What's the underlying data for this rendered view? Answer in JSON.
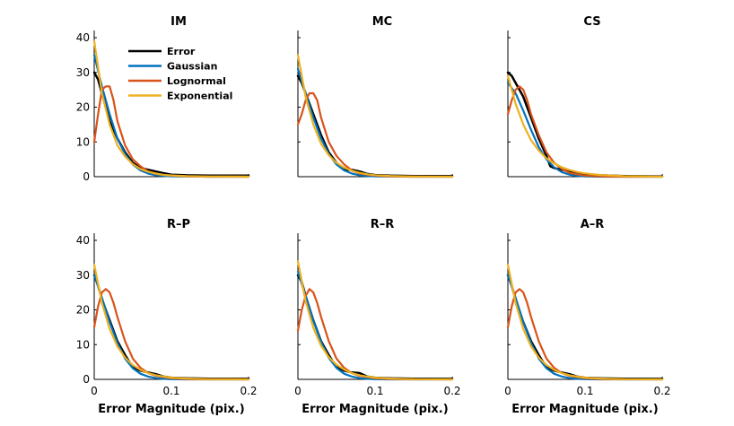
{
  "chart_data": {
    "type": "line",
    "layout": "2x3 small multiples",
    "legend": {
      "placement": "top-right of first panel",
      "entries": [
        {
          "name": "Error",
          "color": "#000000"
        },
        {
          "name": "Gaussian",
          "color": "#0072BD"
        },
        {
          "name": "Lognormal",
          "color": "#D95319"
        },
        {
          "name": "Exponential",
          "color": "#EDB120"
        }
      ]
    },
    "xlabel": "Error Magnitude (pix.)",
    "ylabel": "",
    "xlim": [
      0,
      0.2
    ],
    "ylim": [
      0,
      40
    ],
    "xticks": [
      "0",
      "0.1",
      "0.2"
    ],
    "yticks": [
      "0",
      "10",
      "20",
      "30",
      "40"
    ],
    "grid": false,
    "panels": [
      {
        "title": "IM",
        "series": [
          {
            "name": "Error",
            "x": [
              0,
              0.005,
              0.01,
              0.02,
              0.03,
              0.04,
              0.05,
              0.06,
              0.07,
              0.08,
              0.09,
              0.1,
              0.12,
              0.15,
              0.2
            ],
            "y": [
              30,
              28,
              24,
              16,
              11,
              7,
              4,
              2.5,
              2,
              1.5,
              1,
              0.6,
              0.4,
              0.3,
              0.3
            ]
          },
          {
            "name": "Gaussian",
            "x": [
              0,
              0.01,
              0.02,
              0.03,
              0.04,
              0.05,
              0.06,
              0.07,
              0.08,
              0.09,
              0.1,
              0.12,
              0.15,
              0.2
            ],
            "y": [
              35,
              26,
              18,
              11,
              6.5,
              3.5,
              1.8,
              0.9,
              0.4,
              0.2,
              0.1,
              0.05,
              0,
              0
            ]
          },
          {
            "name": "Lognormal",
            "x": [
              0,
              0.005,
              0.01,
              0.015,
              0.02,
              0.025,
              0.03,
              0.04,
              0.05,
              0.06,
              0.07,
              0.08,
              0.1,
              0.12,
              0.15,
              0.2
            ],
            "y": [
              10,
              18,
              25,
              26,
              26,
              22,
              16,
              9,
              5,
              3,
              1.5,
              0.8,
              0.3,
              0.1,
              0,
              0
            ]
          },
          {
            "name": "Exponential",
            "x": [
              0,
              0.01,
              0.02,
              0.03,
              0.04,
              0.05,
              0.06,
              0.07,
              0.08,
              0.09,
              0.1,
              0.12,
              0.15,
              0.2
            ],
            "y": [
              39,
              24,
              15,
              9,
              5.8,
              3.6,
              2.2,
              1.4,
              0.9,
              0.5,
              0.35,
              0.15,
              0.05,
              0
            ]
          }
        ]
      },
      {
        "title": "MC",
        "series": [
          {
            "name": "Error",
            "x": [
              0,
              0.005,
              0.01,
              0.02,
              0.03,
              0.04,
              0.05,
              0.06,
              0.07,
              0.08,
              0.09,
              0.1,
              0.12,
              0.15,
              0.2
            ],
            "y": [
              29,
              27,
              24,
              18,
              12,
              7,
              4,
              2,
              2,
              1.5,
              0.8,
              0.5,
              0.3,
              0.2,
              0.2
            ]
          },
          {
            "name": "Gaussian",
            "x": [
              0,
              0.01,
              0.02,
              0.03,
              0.04,
              0.05,
              0.06,
              0.07,
              0.08,
              0.09,
              0.1,
              0.12,
              0.15,
              0.2
            ],
            "y": [
              31,
              24,
              17,
              11,
              6.5,
              3.5,
              1.8,
              0.9,
              0.4,
              0.2,
              0.1,
              0.05,
              0,
              0
            ]
          },
          {
            "name": "Lognormal",
            "x": [
              0,
              0.005,
              0.01,
              0.015,
              0.02,
              0.025,
              0.03,
              0.04,
              0.05,
              0.06,
              0.07,
              0.08,
              0.1,
              0.12,
              0.15,
              0.2
            ],
            "y": [
              15,
              18,
              22,
              24,
              24,
              22,
              17,
              10,
              6,
              3.5,
              1.8,
              0.9,
              0.3,
              0.1,
              0,
              0
            ]
          },
          {
            "name": "Exponential",
            "x": [
              0,
              0.01,
              0.02,
              0.03,
              0.04,
              0.05,
              0.06,
              0.07,
              0.08,
              0.09,
              0.1,
              0.12,
              0.15,
              0.2
            ],
            "y": [
              35,
              23,
              15,
              9.5,
              6.2,
              4,
              2.6,
              1.7,
              1.1,
              0.7,
              0.45,
              0.2,
              0.05,
              0
            ]
          }
        ]
      },
      {
        "title": "CS",
        "series": [
          {
            "name": "Error",
            "x": [
              0,
              0.005,
              0.01,
              0.02,
              0.03,
              0.04,
              0.05,
              0.055,
              0.06,
              0.07,
              0.08,
              0.1,
              0.12,
              0.15,
              0.2
            ],
            "y": [
              30,
              29,
              27,
              23,
              17,
              11,
              6,
              3,
              2.5,
              2,
              1.5,
              0.7,
              0.4,
              0.2,
              0.1
            ]
          },
          {
            "name": "Gaussian",
            "x": [
              0,
              0.01,
              0.02,
              0.03,
              0.04,
              0.05,
              0.06,
              0.07,
              0.08,
              0.09,
              0.1,
              0.12,
              0.15,
              0.2
            ],
            "y": [
              27,
              24,
              19,
              13.5,
              8.5,
              5,
              2.7,
              1.3,
              0.6,
              0.25,
              0.1,
              0,
              0,
              0
            ]
          },
          {
            "name": "Lognormal",
            "x": [
              0,
              0.005,
              0.01,
              0.015,
              0.02,
              0.025,
              0.03,
              0.04,
              0.05,
              0.06,
              0.07,
              0.08,
              0.1,
              0.12,
              0.15,
              0.2
            ],
            "y": [
              18,
              22,
              25,
              26,
              25,
              22,
              18,
              12,
              7,
              4,
              2.2,
              1.1,
              0.3,
              0.1,
              0,
              0
            ]
          },
          {
            "name": "Exponential",
            "x": [
              0,
              0.01,
              0.02,
              0.03,
              0.04,
              0.05,
              0.06,
              0.07,
              0.08,
              0.09,
              0.1,
              0.12,
              0.15,
              0.2
            ],
            "y": [
              29,
              21,
              15,
              10.5,
              7.5,
              5.3,
              3.8,
              2.7,
              1.9,
              1.35,
              0.95,
              0.5,
              0.15,
              0
            ]
          }
        ]
      },
      {
        "title": "R–P",
        "series": [
          {
            "name": "Error",
            "x": [
              0,
              0.005,
              0.01,
              0.02,
              0.03,
              0.04,
              0.05,
              0.06,
              0.07,
              0.08,
              0.09,
              0.1,
              0.12,
              0.15,
              0.2
            ],
            "y": [
              30,
              27,
              23,
              17,
              11,
              7,
              3.5,
              2.5,
              2,
              1.5,
              0.8,
              0.5,
              0.3,
              0.2,
              0.2
            ]
          },
          {
            "name": "Gaussian",
            "x": [
              0,
              0.01,
              0.02,
              0.03,
              0.04,
              0.05,
              0.06,
              0.07,
              0.08,
              0.09,
              0.1,
              0.12,
              0.15,
              0.2
            ],
            "y": [
              30,
              23.5,
              16.5,
              10.5,
              6,
              3.2,
              1.6,
              0.8,
              0.35,
              0.15,
              0.06,
              0,
              0,
              0
            ]
          },
          {
            "name": "Lognormal",
            "x": [
              0,
              0.005,
              0.01,
              0.015,
              0.02,
              0.025,
              0.03,
              0.04,
              0.05,
              0.06,
              0.07,
              0.08,
              0.1,
              0.12,
              0.15,
              0.2
            ],
            "y": [
              15,
              21,
              25,
              26,
              25,
              22,
              18,
              11,
              6,
              3.3,
              1.8,
              1,
              0.3,
              0.1,
              0,
              0
            ]
          },
          {
            "name": "Exponential",
            "x": [
              0,
              0.01,
              0.02,
              0.03,
              0.04,
              0.05,
              0.06,
              0.07,
              0.08,
              0.09,
              0.1,
              0.12,
              0.15,
              0.2
            ],
            "y": [
              33,
              22,
              14.5,
              9.5,
              6.3,
              4.1,
              2.7,
              1.8,
              1.2,
              0.8,
              0.5,
              0.22,
              0.06,
              0
            ]
          }
        ]
      },
      {
        "title": "R–R",
        "series": [
          {
            "name": "Error",
            "x": [
              0,
              0.005,
              0.01,
              0.02,
              0.03,
              0.04,
              0.05,
              0.06,
              0.07,
              0.08,
              0.09,
              0.1,
              0.12,
              0.15,
              0.2
            ],
            "y": [
              30,
              28,
              24,
              17,
              11,
              7,
              3.5,
              2.5,
              2,
              1.8,
              0.8,
              0.5,
              0.3,
              0.2,
              0.2
            ]
          },
          {
            "name": "Gaussian",
            "x": [
              0,
              0.01,
              0.02,
              0.03,
              0.04,
              0.05,
              0.06,
              0.07,
              0.08,
              0.09,
              0.1,
              0.12,
              0.15,
              0.2
            ],
            "y": [
              31,
              24,
              17,
              10.8,
              6.2,
              3.3,
              1.6,
              0.8,
              0.35,
              0.15,
              0.06,
              0,
              0,
              0
            ]
          },
          {
            "name": "Lognormal",
            "x": [
              0,
              0.005,
              0.01,
              0.015,
              0.02,
              0.025,
              0.03,
              0.04,
              0.05,
              0.06,
              0.07,
              0.08,
              0.1,
              0.12,
              0.15,
              0.2
            ],
            "y": [
              14,
              20,
              24,
              26,
              25,
              22,
              18,
              11,
              6,
              3.3,
              1.8,
              1,
              0.3,
              0.1,
              0,
              0
            ]
          },
          {
            "name": "Exponential",
            "x": [
              0,
              0.01,
              0.02,
              0.03,
              0.04,
              0.05,
              0.06,
              0.07,
              0.08,
              0.09,
              0.1,
              0.12,
              0.15,
              0.2
            ],
            "y": [
              34,
              22.5,
              14.8,
              9.7,
              6.4,
              4.2,
              2.8,
              1.8,
              1.2,
              0.8,
              0.5,
              0.22,
              0.06,
              0
            ]
          }
        ]
      },
      {
        "title": "A–R",
        "series": [
          {
            "name": "Error",
            "x": [
              0,
              0.005,
              0.01,
              0.02,
              0.03,
              0.04,
              0.05,
              0.06,
              0.07,
              0.08,
              0.09,
              0.1,
              0.12,
              0.15,
              0.2
            ],
            "y": [
              30,
              27,
              23,
              16.5,
              11,
              7,
              3.5,
              2.5,
              2,
              1.5,
              0.8,
              0.5,
              0.3,
              0.2,
              0.2
            ]
          },
          {
            "name": "Gaussian",
            "x": [
              0,
              0.01,
              0.02,
              0.03,
              0.04,
              0.05,
              0.06,
              0.07,
              0.08,
              0.09,
              0.1,
              0.12,
              0.15,
              0.2
            ],
            "y": [
              30,
              23.5,
              16.5,
              10.5,
              6,
              3.2,
              1.6,
              0.8,
              0.35,
              0.15,
              0.06,
              0,
              0,
              0
            ]
          },
          {
            "name": "Lognormal",
            "x": [
              0,
              0.005,
              0.01,
              0.015,
              0.02,
              0.025,
              0.03,
              0.04,
              0.05,
              0.06,
              0.07,
              0.08,
              0.1,
              0.12,
              0.15,
              0.2
            ],
            "y": [
              15,
              21,
              25,
              26,
              25,
              22,
              18,
              11,
              6,
              3.3,
              1.8,
              1,
              0.3,
              0.1,
              0,
              0
            ]
          },
          {
            "name": "Exponential",
            "x": [
              0,
              0.01,
              0.02,
              0.03,
              0.04,
              0.05,
              0.06,
              0.07,
              0.08,
              0.09,
              0.1,
              0.12,
              0.15,
              0.2
            ],
            "y": [
              33,
              22,
              14.5,
              9.5,
              6.3,
              4.1,
              2.7,
              1.8,
              1.2,
              0.8,
              0.5,
              0.22,
              0.06,
              0
            ]
          }
        ]
      }
    ]
  }
}
